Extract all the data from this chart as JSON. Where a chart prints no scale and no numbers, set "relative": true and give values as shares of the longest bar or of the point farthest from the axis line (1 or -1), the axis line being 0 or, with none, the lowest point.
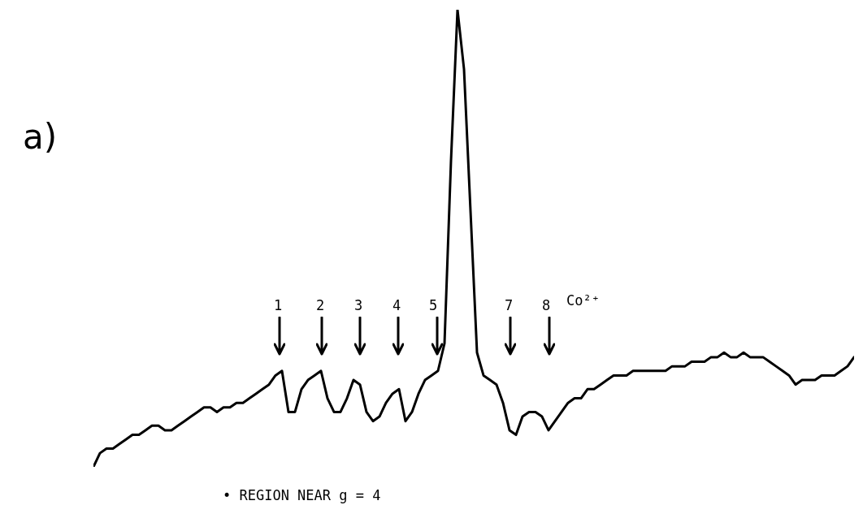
{
  "chart_data": {
    "type": "line",
    "relative": true,
    "categories": [
      null,
      null,
      null,
      null,
      null,
      null,
      null,
      null,
      null,
      null,
      null,
      null,
      null,
      null,
      null,
      null,
      null,
      null,
      null,
      null,
      null,
      null,
      null,
      null,
      null,
      null,
      null,
      null,
      null,
      null,
      null,
      null,
      null,
      null,
      null,
      null,
      null,
      null,
      null,
      null,
      null,
      null,
      null,
      null,
      null,
      null,
      null,
      null,
      null,
      null,
      null,
      null,
      null,
      null,
      null,
      null,
      null,
      null,
      null,
      null,
      null,
      null,
      null,
      null,
      null,
      null,
      null,
      null,
      null,
      null,
      null,
      null,
      null,
      null,
      null,
      null,
      null,
      null,
      null,
      null,
      null,
      null,
      null,
      null,
      null,
      null,
      null,
      null,
      null,
      null,
      null,
      null,
      null,
      null,
      null,
      null,
      null,
      null,
      null,
      null,
      null,
      null,
      null,
      null,
      null,
      null,
      null,
      null,
      null,
      null,
      null,
      null,
      null,
      null,
      null,
      null,
      null,
      null
    ],
    "series": [
      {
        "color": "#000000",
        "values": [
          0,
          0.03,
          0.04,
          0.04,
          0.05,
          0.06,
          0.07,
          0.07,
          0.08,
          0.09,
          0.09,
          0.08,
          0.08,
          0.09,
          0.1,
          0.11,
          0.12,
          0.13,
          0.13,
          0.12,
          0.13,
          0.13,
          0.14,
          0.14,
          0.15,
          0.16,
          0.17,
          0.18,
          0.2,
          0.21,
          0.12,
          0.12,
          0.17,
          0.19,
          0.2,
          0.21,
          0.15,
          0.12,
          0.12,
          0.15,
          0.19,
          0.18,
          0.12,
          0.1,
          0.11,
          0.14,
          0.16,
          0.17,
          0.1,
          0.12,
          0.16,
          0.19,
          0.2,
          0.21,
          0.27,
          0.67,
          1,
          0.87,
          0.56,
          0.25,
          0.2,
          0.19,
          0.18,
          0.14,
          0.08,
          0.07,
          0.11,
          0.12,
          0.12,
          0.11,
          0.08,
          0.1,
          0.12,
          0.14,
          0.15,
          0.15,
          0.17,
          0.17,
          0.18,
          0.19,
          0.2,
          0.2,
          0.2,
          0.21,
          0.21,
          0.21,
          0.21,
          0.21,
          0.21,
          0.22,
          0.22,
          0.22,
          0.23,
          0.23,
          0.23,
          0.24,
          0.24,
          0.25,
          0.24,
          0.24,
          0.25,
          0.24,
          0.24,
          0.24,
          0.23,
          0.22,
          0.21,
          0.2,
          0.18,
          0.19,
          0.19,
          0.19,
          0.2,
          0.2,
          0.2,
          0.21,
          0.22,
          0.24
        ]
      }
    ],
    "annotations": [
      "a)",
      "1",
      "2",
      "3",
      "4",
      "5",
      "7",
      "8",
      "Co²⁺",
      "• REGION NEAR g = 4"
    ]
  }
}
